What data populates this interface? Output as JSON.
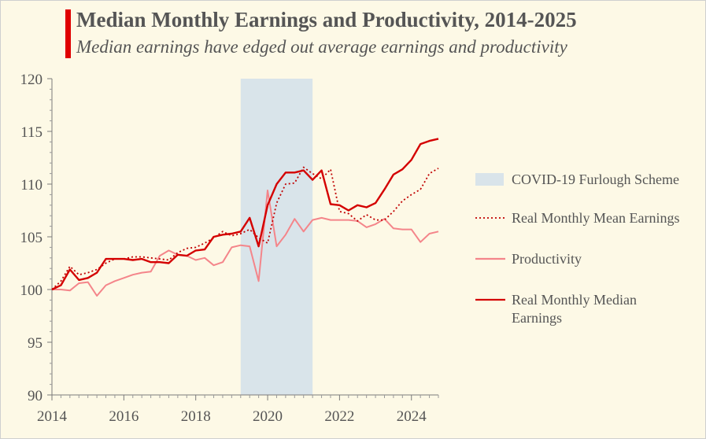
{
  "title": "Median Monthly Earnings and Productivity, 2014-2025",
  "subtitle": "Median earnings have edged out average earnings and productivity",
  "chart_data": {
    "type": "line",
    "title": "Median Monthly Earnings and Productivity, 2014-2025",
    "subtitle": "Median earnings have edged out average earnings and productivity",
    "xlim": [
      2014,
      2024.75
    ],
    "ylim": [
      90,
      120
    ],
    "x_ticks": [
      2014,
      2016,
      2018,
      2020,
      2022,
      2024
    ],
    "y_ticks": [
      90,
      95,
      100,
      105,
      110,
      115,
      120
    ],
    "grid": false,
    "legend_position": "right",
    "shaded_region": {
      "name": "COVID-19 Furlough Scheme",
      "x_start": 2019.25,
      "x_end": 2021.25,
      "color": "#d9e4ea"
    },
    "x": [
      2014.0,
      2014.25,
      2014.5,
      2014.75,
      2015.0,
      2015.25,
      2015.5,
      2015.75,
      2016.0,
      2016.25,
      2016.5,
      2016.75,
      2017.0,
      2017.25,
      2017.5,
      2017.75,
      2018.0,
      2018.25,
      2018.5,
      2018.75,
      2019.0,
      2019.25,
      2019.5,
      2019.75,
      2020.0,
      2020.25,
      2020.5,
      2020.75,
      2021.0,
      2021.25,
      2021.5,
      2021.75,
      2022.0,
      2022.25,
      2022.5,
      2022.75,
      2023.0,
      2023.25,
      2023.5,
      2023.75,
      2024.0,
      2024.25,
      2024.5,
      2024.75
    ],
    "series": [
      {
        "name": "Real Monthly Mean Earnings",
        "style": "dotted",
        "color": "#c00000",
        "values": [
          100.0,
          100.8,
          102.2,
          101.4,
          101.6,
          101.9,
          102.5,
          102.9,
          102.9,
          103.1,
          103.1,
          103.0,
          102.9,
          102.8,
          103.5,
          103.9,
          104.0,
          104.4,
          104.9,
          105.5,
          105.1,
          105.3,
          105.7,
          104.9,
          104.4,
          108.2,
          110.0,
          110.1,
          111.6,
          111.0,
          110.5,
          111.4,
          107.4,
          107.2,
          106.5,
          107.1,
          106.6,
          106.6,
          107.4,
          108.4,
          109.0,
          109.5,
          111.0,
          111.5
        ]
      },
      {
        "name": "Productivity",
        "style": "solid",
        "color": "#f4858a",
        "values": [
          100.0,
          100.0,
          99.9,
          100.6,
          100.7,
          99.4,
          100.4,
          100.8,
          101.1,
          101.4,
          101.6,
          101.7,
          103.2,
          103.7,
          103.3,
          103.2,
          102.8,
          103.0,
          102.3,
          102.6,
          104.0,
          104.2,
          104.1,
          100.8,
          109.4,
          104.1,
          105.2,
          106.7,
          105.5,
          106.6,
          106.8,
          106.6,
          106.6,
          106.6,
          106.5,
          105.9,
          106.2,
          106.7,
          105.8,
          105.7,
          105.7,
          104.5,
          105.3,
          105.5
        ]
      },
      {
        "name": "Real Monthly Median Earnings",
        "style": "solid",
        "color": "#d40000",
        "values": [
          100.0,
          100.4,
          101.9,
          100.9,
          101.1,
          101.6,
          102.9,
          102.9,
          102.9,
          102.8,
          102.9,
          102.6,
          102.6,
          102.5,
          103.3,
          103.2,
          103.7,
          103.8,
          105.0,
          105.2,
          105.3,
          105.5,
          106.8,
          104.1,
          108.0,
          110.0,
          111.1,
          111.1,
          111.3,
          110.4,
          111.3,
          108.1,
          108.0,
          107.5,
          108.0,
          107.8,
          108.2,
          109.5,
          110.9,
          111.4,
          112.3,
          113.8,
          114.1,
          114.3
        ]
      }
    ]
  }
}
